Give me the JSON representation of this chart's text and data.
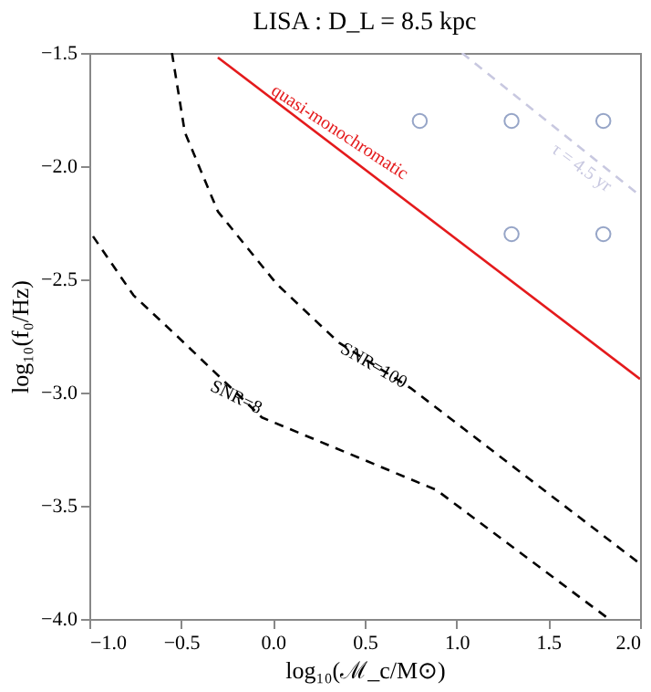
{
  "chart_data": {
    "type": "line",
    "title": "LISA :  D_L = 8.5 kpc",
    "xlabel": "log₁₀(ℳ_c/M⊙)",
    "ylabel": "log₁₀(f₀/Hz)",
    "xlim": [
      -1.0,
      2.0
    ],
    "ylim": [
      -4.0,
      -1.5
    ],
    "xticks": [
      {
        "value": -1,
        "label": "−1.0"
      },
      -0.5,
      {
        "value": 0,
        "label": "0.0"
      },
      0.5,
      {
        "value": 1,
        "label": "1.0"
      },
      1.5,
      {
        "value": 2,
        "label": "2.0"
      }
    ],
    "yticks": [
      {
        "value": -4,
        "label": "−4.0"
      },
      -3.5,
      {
        "value": -3,
        "label": "−3.0"
      },
      -2.5,
      {
        "value": -2,
        "label": "−2.0"
      },
      -1.5
    ],
    "grid": false,
    "series": [
      {
        "color": "#000000",
        "line_style": "dashed",
        "x": [
          -0.98,
          -0.76,
          -0.51,
          -0.06,
          0.89,
          1.83
        ],
        "values": [
          -2.31,
          -2.57,
          -2.76,
          -3.11,
          -3.43,
          -4.0
        ]
      },
      {
        "color": "#000000",
        "line_style": "dashed",
        "x": [
          -0.55,
          -0.48,
          -0.3,
          0.02,
          0.36,
          0.75,
          1.99
        ],
        "values": [
          -1.5,
          -1.85,
          -2.2,
          -2.52,
          -2.78,
          -2.98,
          -3.75
        ]
      },
      {
        "color": "#e41a1c",
        "line_style": "solid",
        "x": [
          -0.3,
          2.0
        ],
        "values": [
          -1.52,
          -2.94
        ]
      },
      {
        "color": "#c8c8e0",
        "line_style": "dashed",
        "x": [
          1.03,
          2.0
        ],
        "values": [
          -1.5,
          -2.13
        ]
      },
      {
        "type": "scatter",
        "color": "#6a7fb0",
        "marker": "circle",
        "x": [
          0.8,
          1.3,
          1.8,
          1.3,
          1.8
        ],
        "values": [
          -1.8,
          -1.8,
          -1.8,
          -2.3,
          -2.3
        ]
      }
    ],
    "annotations": [
      {
        "text": "SNR=8",
        "x": -0.2,
        "y": -3.02
      },
      {
        "text": "SNR=100",
        "x": 0.55,
        "y": -2.88
      },
      "quasi-monochromatic",
      "τ = 4.5 yr"
    ]
  }
}
